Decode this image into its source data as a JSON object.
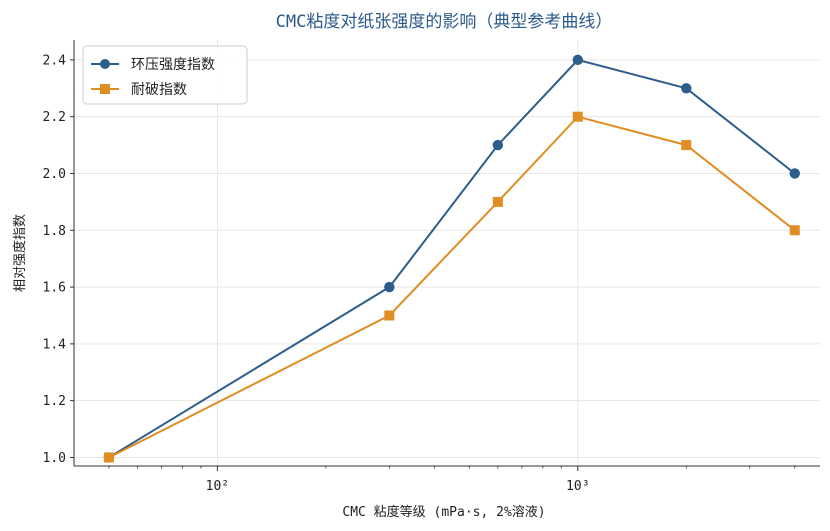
{
  "chart_data": {
    "type": "line",
    "title": "CMC粘度对纸张强度的影响（典型参考曲线）",
    "xlabel": "CMC 粘度等级 (mPa·s, 2%溶液)",
    "ylabel": "相对强度指数",
    "x_scale": "log",
    "xlim": [
      40,
      4700
    ],
    "ylim": [
      0.97,
      2.47
    ],
    "x_ticks": [
      100,
      1000
    ],
    "x_tick_labels": [
      "10²",
      "10³"
    ],
    "y_ticks": [
      1.0,
      1.2,
      1.4,
      1.6,
      1.8,
      2.0,
      2.2,
      2.4
    ],
    "y_tick_labels": [
      "1.0",
      "1.2",
      "1.4",
      "1.6",
      "1.8",
      "2.0",
      "2.2",
      "2.4"
    ],
    "grid": true,
    "legend_position": "top-left",
    "x": [
      50,
      300,
      600,
      1000,
      2000,
      4000
    ],
    "series": [
      {
        "name": "环压强度指数",
        "values": [
          1.0,
          1.6,
          2.1,
          2.4,
          2.3,
          2.0
        ],
        "color": "#2c5d8b",
        "marker": "circle"
      },
      {
        "name": "耐破指数",
        "values": [
          1.0,
          1.5,
          1.9,
          2.2,
          2.1,
          1.8
        ],
        "color": "#e08e24",
        "marker": "square"
      }
    ]
  }
}
